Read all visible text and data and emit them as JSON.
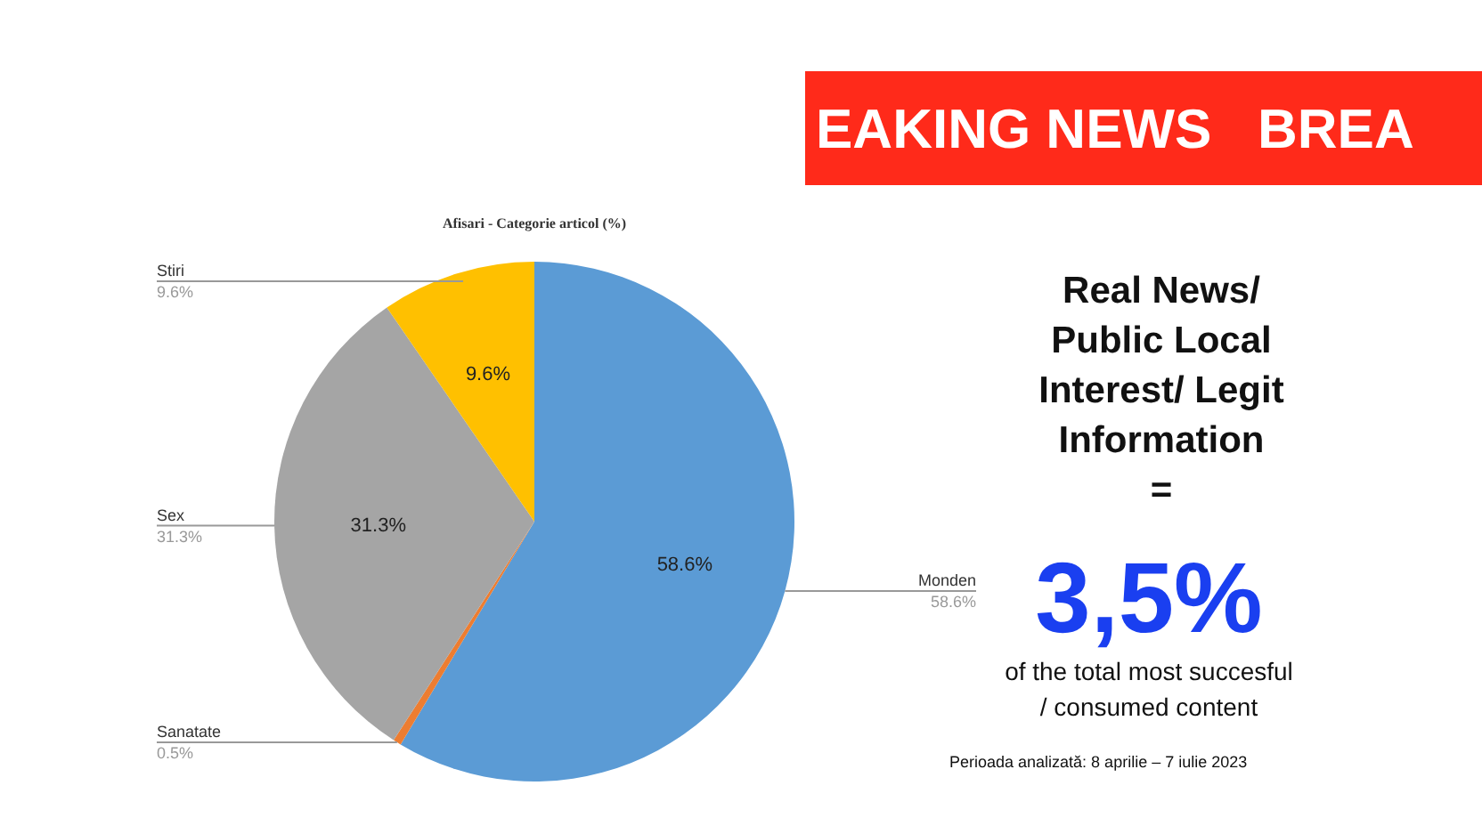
{
  "chart_data": {
    "type": "pie",
    "title": "Afisari - Categorie articol (%)",
    "categories": [
      "Monden",
      "Sanatate",
      "Sex",
      "Stiri"
    ],
    "values": [
      58.6,
      0.5,
      31.3,
      9.6
    ],
    "colors": [
      "#5b9bd5",
      "#ed7d31",
      "#a5a5a5",
      "#ffc000"
    ],
    "value_labels": [
      "58.6%",
      "0.5%",
      "31.3%",
      "9.6%"
    ],
    "annotations": [
      "EAKING NEWS   BREA",
      "Real News/",
      "Public Local",
      "Interest/ Legit",
      "Information",
      "=",
      "3,5%",
      "of the total most succesful",
      "/ consumed content",
      "Perioada analizată: 8 aprilie – 7 iulie 2023"
    ]
  }
}
